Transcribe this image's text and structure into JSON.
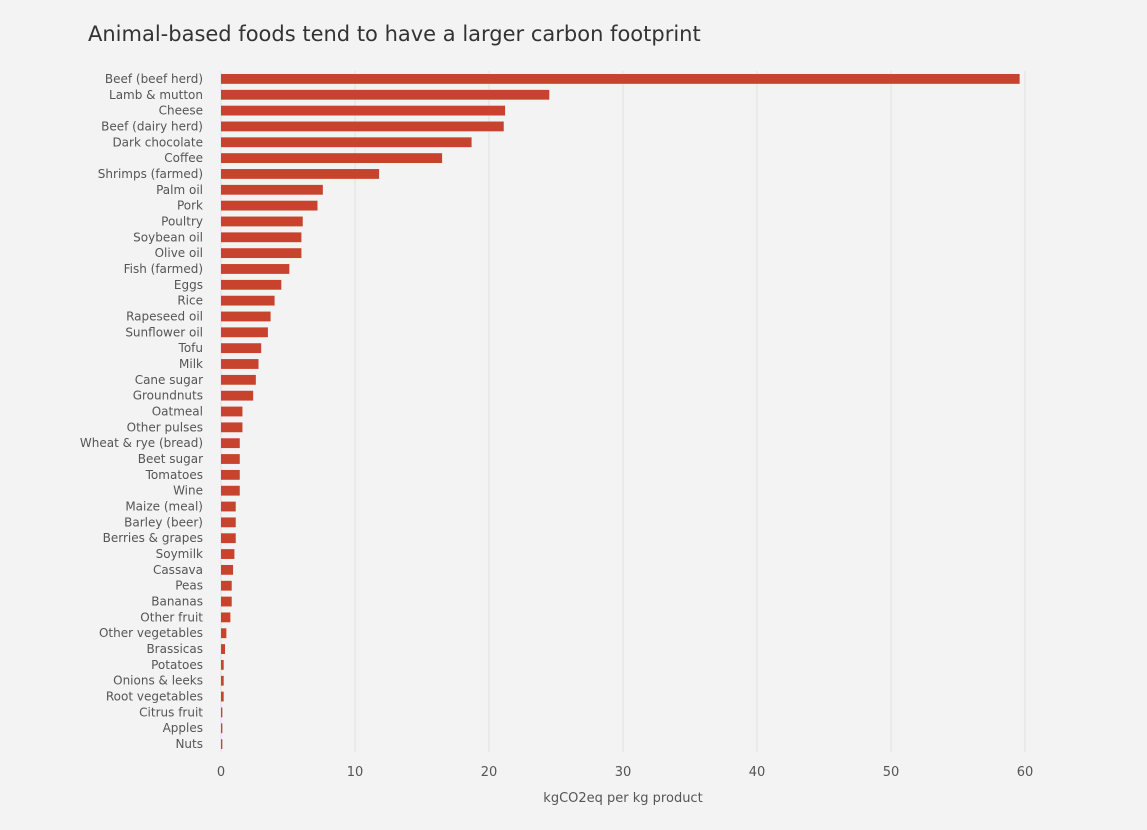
{
  "chart_data": {
    "type": "bar",
    "orientation": "horizontal",
    "title": "Animal-based foods tend to have a larger carbon footprint",
    "xlabel": "kgCO2eq per kg product",
    "ylabel": "",
    "xlim": [
      0,
      60
    ],
    "xticks": [
      0,
      10,
      20,
      30,
      40,
      50,
      60
    ],
    "grid": true,
    "bar_color": "#c8432e",
    "categories": [
      "Beef (beef herd)",
      "Lamb & mutton",
      "Cheese",
      "Beef (dairy herd)",
      "Dark chocolate",
      "Coffee",
      "Shrimps (farmed)",
      "Palm oil",
      "Pork",
      "Poultry",
      "Soybean oil",
      "Olive oil",
      "Fish (farmed)",
      "Eggs",
      "Rice",
      "Rapeseed oil",
      "Sunflower oil",
      "Tofu",
      "Milk",
      "Cane sugar",
      "Groundnuts",
      "Oatmeal",
      "Other pulses",
      "Wheat & rye (bread)",
      "Beet sugar",
      "Tomatoes",
      "Wine",
      "Maize (meal)",
      "Barley (beer)",
      "Berries & grapes",
      "Soymilk",
      "Cassava",
      "Peas",
      "Bananas",
      "Other fruit",
      "Other vegetables",
      "Brassicas",
      "Potatoes",
      "Onions & leeks",
      "Root vegetables",
      "Citrus fruit",
      "Apples",
      "Nuts"
    ],
    "values": [
      59.6,
      24.5,
      21.2,
      21.1,
      18.7,
      16.5,
      11.8,
      7.6,
      7.2,
      6.1,
      6.0,
      6.0,
      5.1,
      4.5,
      4.0,
      3.7,
      3.5,
      3.0,
      2.8,
      2.6,
      2.4,
      1.6,
      1.6,
      1.4,
      1.4,
      1.4,
      1.4,
      1.1,
      1.1,
      1.1,
      1.0,
      0.9,
      0.8,
      0.8,
      0.7,
      0.4,
      0.3,
      0.2,
      0.2,
      0.2,
      0.1,
      0.1,
      0.1
    ]
  }
}
